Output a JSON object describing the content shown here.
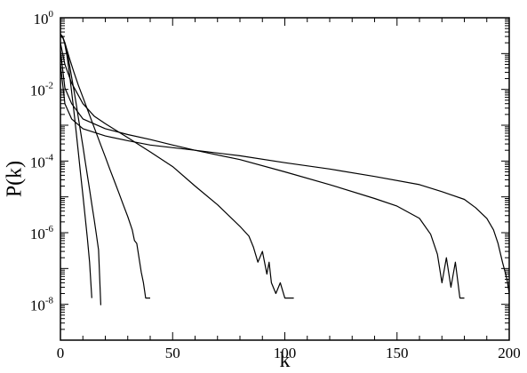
{
  "chart_data": {
    "type": "line",
    "title": "",
    "xlabel": "k",
    "ylabel": "P(k)",
    "xlim": [
      0,
      200
    ],
    "ylim": [
      1e-09,
      1
    ],
    "yscale": "log",
    "grid": false,
    "legend": "none",
    "line_color": "#000000",
    "x_ticks": [
      {
        "value": 0,
        "label": "0"
      },
      {
        "value": 50,
        "label": "50"
      },
      {
        "value": 100,
        "label": "100"
      },
      {
        "value": 150,
        "label": "150"
      },
      {
        "value": 200,
        "label": "200"
      }
    ],
    "y_ticks": [
      {
        "value": 1,
        "base": "10",
        "exp": "0"
      },
      {
        "value": 0.01,
        "base": "10",
        "exp": "-2"
      },
      {
        "value": 0.0001,
        "base": "10",
        "exp": "-4"
      },
      {
        "value": 1e-06,
        "base": "10",
        "exp": "-6"
      },
      {
        "value": 1e-08,
        "base": "10",
        "exp": "-8"
      }
    ],
    "series": [
      {
        "x": [
          0,
          1,
          2,
          3,
          4,
          5,
          6,
          7,
          8,
          9,
          10,
          11,
          12,
          13,
          14
        ],
        "y": [
          0.35,
          0.3,
          0.18,
          0.08,
          0.028,
          0.0085,
          0.0024,
          0.00065,
          0.00017,
          4.3e-05,
          1.1e-05,
          2.8e-06,
          7e-07,
          1.5e-07,
          1.5e-08
        ]
      },
      {
        "x": [
          0,
          1,
          2,
          3,
          4,
          5,
          6,
          7,
          8,
          9,
          10,
          11,
          12,
          13,
          14,
          15,
          16,
          17,
          18
        ],
        "y": [
          0.3,
          0.3,
          0.2,
          0.11,
          0.05,
          0.022,
          0.0095,
          0.004,
          0.0016,
          0.00065,
          0.00026,
          0.0001,
          4e-05,
          1.6e-05,
          6.2e-06,
          2.4e-06,
          9e-07,
          3.3e-07,
          9.5e-09
        ]
      },
      {
        "x": [
          0,
          1,
          2,
          3,
          4,
          6,
          8,
          10,
          12,
          14,
          16,
          18,
          20,
          22,
          24,
          26,
          28,
          30,
          32,
          33,
          34,
          35,
          36,
          37,
          38,
          40
        ],
        "y": [
          0.3,
          0.28,
          0.2,
          0.12,
          0.075,
          0.03,
          0.013,
          0.006,
          0.0028,
          0.0013,
          0.0006,
          0.00028,
          0.00013,
          6e-05,
          2.8e-05,
          1.3e-05,
          6e-06,
          2.8e-06,
          1.2e-06,
          6e-07,
          5e-07,
          2e-07,
          8e-08,
          4e-08,
          1.5e-08,
          1.5e-08
        ]
      },
      {
        "x": [
          0,
          2,
          5,
          10,
          15,
          20,
          30,
          40,
          50,
          60,
          70,
          80,
          84,
          86,
          88,
          90,
          92,
          93,
          94,
          96,
          98,
          100,
          104
        ],
        "y": [
          0.2,
          0.05,
          0.015,
          0.004,
          0.0018,
          0.0011,
          0.00045,
          0.00018,
          7e-05,
          2e-05,
          6e-06,
          1.5e-06,
          8e-07,
          4e-07,
          1.5e-07,
          3e-07,
          7e-08,
          1.5e-07,
          4e-08,
          2e-08,
          4e-08,
          1.5e-08,
          1.5e-08
        ]
      },
      {
        "x": [
          0,
          2,
          5,
          10,
          20,
          30,
          40,
          50,
          60,
          80,
          100,
          120,
          140,
          150,
          160,
          165,
          168,
          170,
          172,
          174,
          176,
          178,
          180
        ],
        "y": [
          0.12,
          0.011,
          0.004,
          0.0015,
          0.0008,
          0.00055,
          0.0004,
          0.00028,
          0.0002,
          0.00011,
          5e-05,
          2.2e-05,
          9e-06,
          5.5e-06,
          2.5e-06,
          9e-07,
          2.5e-07,
          4e-08,
          2e-07,
          3e-08,
          1.5e-07,
          1.5e-08,
          1.5e-08
        ]
      },
      {
        "x": [
          0,
          2,
          5,
          10,
          20,
          30,
          40,
          60,
          80,
          100,
          120,
          140,
          160,
          170,
          180,
          185,
          190,
          193,
          195,
          197,
          199,
          200
        ],
        "y": [
          0.05,
          0.004,
          0.0015,
          0.0008,
          0.0005,
          0.00037,
          0.00028,
          0.0002,
          0.00014,
          9e-05,
          6e-05,
          3.7e-05,
          2.2e-05,
          1.4e-05,
          8.5e-06,
          5e-06,
          2.5e-06,
          1.2e-06,
          5e-07,
          1.5e-07,
          5e-08,
          2e-08
        ]
      }
    ]
  }
}
